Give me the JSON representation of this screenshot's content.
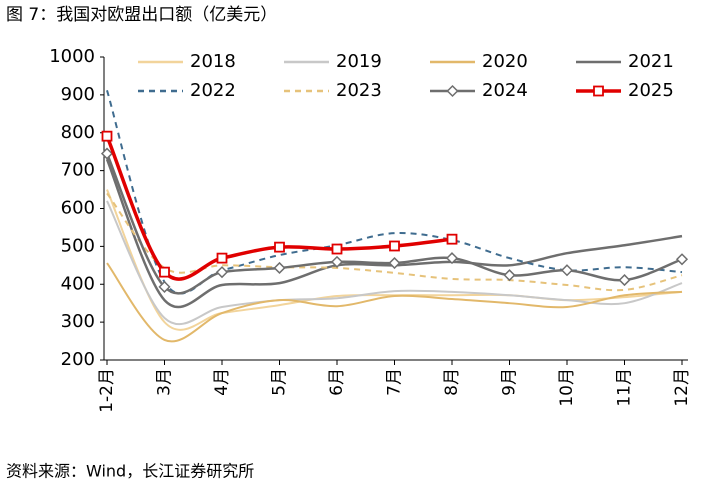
{
  "chart_data": {
    "type": "line",
    "title": "图 7：我国对欧盟出口额（亿美元）",
    "source": "资料来源：Wind，长江证券研究所",
    "categories": [
      "1-2月",
      "3月",
      "4月",
      "5月",
      "6月",
      "7月",
      "8月",
      "9月",
      "10月",
      "11月",
      "12月"
    ],
    "ylim": [
      200,
      1000
    ],
    "yticks": [
      200,
      300,
      400,
      500,
      600,
      700,
      800,
      900,
      1000
    ],
    "legend": "top",
    "smooth": true,
    "series": [
      {
        "name": "2018",
        "color": "#f2d49b",
        "values": [
          650,
          300,
          324,
          345,
          369,
          371,
          371,
          371,
          358,
          366,
          380
        ]
      },
      {
        "name": "2019",
        "color": "#c8c8c8",
        "values": [
          620,
          311,
          340,
          358,
          363,
          382,
          380,
          371,
          358,
          350,
          403
        ]
      },
      {
        "name": "2020",
        "color": "#e2b86a",
        "values": [
          456,
          253,
          324,
          358,
          342,
          369,
          361,
          350,
          340,
          371,
          380
        ]
      },
      {
        "name": "2021",
        "color": "#6e6e6e",
        "values": [
          730,
          358,
          398,
          403,
          450,
          450,
          459,
          450,
          482,
          503,
          527
        ]
      },
      {
        "name": "2022",
        "color": "#3f6c8f",
        "dash": true,
        "values": [
          912,
          406,
          437,
          477,
          503,
          535,
          517,
          469,
          437,
          445,
          432
        ]
      },
      {
        "name": "2023",
        "color": "#e6c27a",
        "dash": true,
        "values": [
          640,
          443,
          450,
          445,
          443,
          430,
          414,
          411,
          398,
          385,
          424
        ]
      },
      {
        "name": "2024",
        "color": "#6e6e6e",
        "marker": "diamond",
        "values": [
          745,
          393,
          432,
          443,
          459,
          456,
          469,
          424,
          437,
          411,
          466
        ]
      },
      {
        "name": "2025",
        "color": "#e00000",
        "marker": "square",
        "values": [
          791,
          432,
          469,
          498,
          493,
          501,
          519,
          null,
          null,
          null,
          null
        ]
      }
    ]
  }
}
